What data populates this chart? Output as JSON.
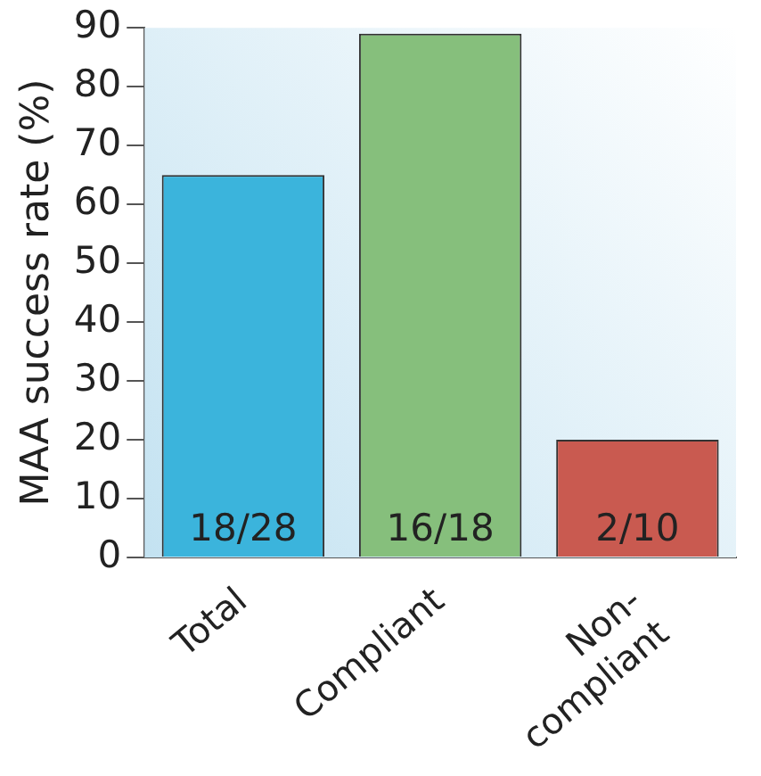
{
  "chart_data": {
    "type": "bar",
    "ylabel": "MAA success rate (%)",
    "categories": [
      "Total",
      "Compliant",
      "Non-compliant"
    ],
    "values": [
      65,
      89,
      20
    ],
    "colors": [
      "#3bb4dc",
      "#86bf7c",
      "#c95a50"
    ],
    "annotations": [
      "18/28",
      "16/18",
      "2/10"
    ],
    "ylim": [
      0,
      90
    ],
    "yticks": [
      0,
      10,
      20,
      30,
      40,
      50,
      60,
      70,
      80,
      90
    ],
    "grid": false,
    "legend": false
  }
}
